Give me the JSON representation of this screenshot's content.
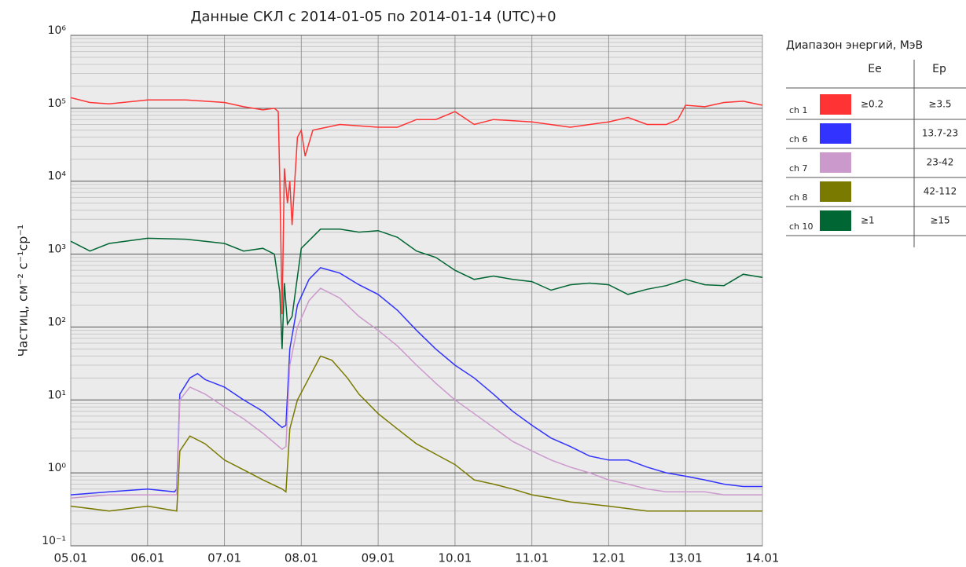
{
  "chart_data": {
    "type": "line",
    "title": "Данные СКЛ с 2014-01-05 по 2014-01-14 (UTC)+0",
    "y_label": "Частиц, см⁻² с⁻¹ср⁻¹",
    "log_y": true,
    "grid": true,
    "minor_grid": true,
    "xlim": [
      0,
      9
    ],
    "xticks": [
      {
        "value": 0,
        "label": "05.01"
      },
      {
        "value": 1,
        "label": "06.01"
      },
      {
        "value": 2,
        "label": "07.01"
      },
      {
        "value": 3,
        "label": "08.01"
      },
      {
        "value": 4,
        "label": "09.01"
      },
      {
        "value": 5,
        "label": "10.01"
      },
      {
        "value": 6,
        "label": "11.01"
      },
      {
        "value": 7,
        "label": "12.01"
      },
      {
        "value": 8,
        "label": "13.01"
      },
      {
        "value": 9,
        "label": "14.01"
      }
    ],
    "ylim": [
      0.1,
      1000000
    ],
    "yticks": [
      {
        "value": 0.1,
        "label": "10⁻¹"
      },
      {
        "value": 1,
        "label": "10⁰"
      },
      {
        "value": 10,
        "label": "10¹"
      },
      {
        "value": 100,
        "label": "10²"
      },
      {
        "value": 1000,
        "label": "10³"
      },
      {
        "value": 10000,
        "label": "10⁴"
      },
      {
        "value": 100000,
        "label": "10⁵"
      },
      {
        "value": 1000000,
        "label": "10⁶"
      }
    ],
    "legend": {
      "title": "Диапазон энергий, МэВ",
      "headers": [
        "Ee",
        "Ep"
      ],
      "position": "right"
    },
    "series": [
      {
        "name": "ch 1",
        "ee": "≥0.2",
        "ep": "≥3.5",
        "color": "#ff3333",
        "x": [
          0,
          0.25,
          0.5,
          1.0,
          1.5,
          2.0,
          2.25,
          2.5,
          2.65,
          2.7,
          2.72,
          2.75,
          2.78,
          2.82,
          2.85,
          2.88,
          2.95,
          3.0,
          3.05,
          3.15,
          3.5,
          4.0,
          4.25,
          4.5,
          4.75,
          5.0,
          5.25,
          5.5,
          6.0,
          6.5,
          7.0,
          7.25,
          7.5,
          7.75,
          7.9,
          8.0,
          8.25,
          8.5,
          8.75,
          9.0
        ],
        "values": [
          140000,
          120000,
          115000,
          130000,
          130000,
          120000,
          105000,
          95000,
          100000,
          90000,
          10000,
          150,
          15000,
          5000,
          10000,
          2500,
          40000,
          50000,
          22000,
          50000,
          60000,
          55000,
          55000,
          70000,
          70000,
          90000,
          60000,
          70000,
          65000,
          55000,
          65000,
          75000,
          60000,
          60000,
          70000,
          110000,
          105000,
          120000,
          125000,
          110000
        ]
      },
      {
        "name": "ch 6",
        "ee": null,
        "ep": "13.7-23",
        "color": "#3333ff",
        "x": [
          0,
          0.5,
          1.0,
          1.35,
          1.38,
          1.42,
          1.55,
          1.65,
          1.75,
          2.0,
          2.25,
          2.5,
          2.75,
          2.8,
          2.85,
          2.95,
          3.1,
          3.25,
          3.5,
          3.75,
          4.0,
          4.25,
          4.5,
          4.75,
          5.0,
          5.25,
          5.5,
          5.75,
          6.0,
          6.25,
          6.5,
          6.75,
          7.0,
          7.25,
          7.5,
          7.75,
          8.0,
          8.25,
          8.5,
          8.75,
          9.0
        ],
        "values": [
          0.5,
          0.55,
          0.6,
          0.55,
          0.6,
          12,
          20,
          23,
          19,
          15,
          10,
          7,
          4.2,
          4.5,
          50,
          200,
          450,
          650,
          550,
          380,
          280,
          170,
          90,
          50,
          30,
          20,
          12,
          7,
          4.5,
          3,
          2.3,
          1.7,
          1.5,
          1.5,
          1.2,
          1.0,
          0.9,
          0.8,
          0.7,
          0.65,
          0.65
        ]
      },
      {
        "name": "ch 7",
        "ee": null,
        "ep": "23-42",
        "color": "#cc99cc",
        "x": [
          0,
          0.5,
          1.0,
          1.38,
          1.42,
          1.55,
          1.75,
          2.0,
          2.25,
          2.5,
          2.75,
          2.8,
          2.85,
          2.95,
          3.1,
          3.25,
          3.5,
          3.75,
          4.0,
          4.25,
          4.5,
          4.75,
          5.0,
          5.25,
          5.5,
          5.75,
          6.0,
          6.25,
          6.5,
          6.75,
          7.0,
          7.25,
          7.5,
          7.75,
          8.0,
          8.25,
          8.5,
          8.75,
          9.0
        ],
        "values": [
          0.45,
          0.5,
          0.5,
          0.5,
          10,
          15,
          12,
          8,
          5.5,
          3.5,
          2.1,
          2.3,
          30,
          100,
          230,
          340,
          250,
          140,
          90,
          55,
          30,
          17,
          10,
          6.5,
          4.2,
          2.7,
          2.0,
          1.5,
          1.2,
          1.0,
          0.8,
          0.7,
          0.6,
          0.55,
          0.55,
          0.55,
          0.5,
          0.5,
          0.5
        ]
      },
      {
        "name": "ch 8",
        "ee": null,
        "ep": "42-112",
        "color": "#7a7a00",
        "x": [
          0,
          0.5,
          1.0,
          1.38,
          1.42,
          1.55,
          1.75,
          2.0,
          2.25,
          2.5,
          2.75,
          2.8,
          2.85,
          2.95,
          3.1,
          3.25,
          3.4,
          3.6,
          3.75,
          4.0,
          4.25,
          4.5,
          4.75,
          5.0,
          5.25,
          5.5,
          5.75,
          6.0,
          6.25,
          6.5,
          7.0,
          7.5,
          8.0,
          8.5,
          9.0
        ],
        "values": [
          0.35,
          0.3,
          0.35,
          0.3,
          2,
          3.2,
          2.5,
          1.5,
          1.1,
          0.8,
          0.6,
          0.55,
          4,
          10,
          20,
          40,
          35,
          20,
          12,
          6.5,
          4,
          2.5,
          1.8,
          1.3,
          0.8,
          0.7,
          0.6,
          0.5,
          0.45,
          0.4,
          0.35,
          0.3,
          0.3,
          0.3,
          0.3
        ]
      },
      {
        "name": "ch 10",
        "ee": "≥1",
        "ep": "≥15",
        "color": "#006633",
        "x": [
          0,
          0.25,
          0.5,
          1.0,
          1.5,
          2.0,
          2.25,
          2.5,
          2.65,
          2.72,
          2.75,
          2.78,
          2.82,
          2.88,
          3.0,
          3.25,
          3.5,
          3.75,
          4.0,
          4.25,
          4.5,
          4.75,
          5.0,
          5.25,
          5.5,
          5.75,
          6.0,
          6.25,
          6.5,
          6.75,
          7.0,
          7.25,
          7.5,
          7.75,
          8.0,
          8.25,
          8.5,
          8.75,
          9.0
        ],
        "values": [
          1500,
          1100,
          1400,
          1650,
          1600,
          1400,
          1100,
          1200,
          1000,
          300,
          50,
          400,
          110,
          140,
          1200,
          2200,
          2200,
          2000,
          2100,
          1700,
          1100,
          900,
          600,
          450,
          500,
          450,
          420,
          320,
          380,
          400,
          380,
          280,
          330,
          370,
          450,
          380,
          370,
          530,
          480
        ]
      }
    ]
  }
}
